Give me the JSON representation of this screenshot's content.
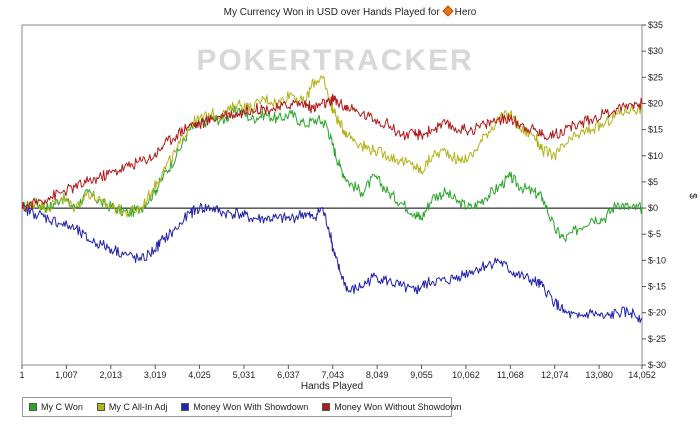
{
  "chart_data": {
    "type": "line",
    "title": "My Currency Won in USD over Hands Played for",
    "title_player": "Hero",
    "watermark": "POKERTRACKER",
    "xlabel": "Hands Played",
    "ylabel": "$",
    "xlim": [
      1,
      14052
    ],
    "ylim": [
      -30,
      35
    ],
    "x_ticks": [
      1,
      1007,
      2013,
      3019,
      4025,
      5031,
      6037,
      7043,
      8049,
      9055,
      10062,
      11068,
      12074,
      13080,
      14052
    ],
    "x_tick_labels": [
      "1",
      "1,007",
      "2,013",
      "3,019",
      "4,025",
      "5,031",
      "6,037",
      "7,043",
      "8,049",
      "9,055",
      "10,062",
      "11,068",
      "12,074",
      "13,080",
      "14,052"
    ],
    "y_ticks": [
      35,
      30,
      25,
      20,
      15,
      10,
      5,
      0,
      -5,
      -10,
      -15,
      -20,
      -25,
      -30
    ],
    "y_tick_labels": [
      "$35",
      "$30",
      "$25",
      "$20",
      "$15",
      "$10",
      "$5",
      "$0",
      "$-5",
      "$-10",
      "$-15",
      "$-20",
      "$-25",
      "$-30"
    ],
    "grid": false,
    "legend_position": "bottom-left",
    "series": [
      {
        "name": "My C Won",
        "color": "#2aa52a",
        "x": [
          1,
          300,
          600,
          900,
          1200,
          1500,
          1800,
          2100,
          2400,
          2700,
          3000,
          3200,
          3500,
          3800,
          4025,
          4300,
          4600,
          4900,
          5200,
          5500,
          5800,
          6100,
          6400,
          6700,
          6900,
          7043,
          7200,
          7400,
          7700,
          8000,
          8300,
          8600,
          8900,
          9055,
          9300,
          9600,
          9900,
          10200,
          10500,
          10800,
          11068,
          11300,
          11600,
          11800,
          12074,
          12300,
          12600,
          12900,
          13200,
          13500,
          13800,
          14052
        ],
        "y": [
          0,
          1,
          0,
          2,
          0,
          3,
          1,
          0,
          -1,
          0,
          3,
          6,
          10,
          15,
          16,
          17,
          17,
          19,
          17,
          18,
          17,
          18,
          16,
          17,
          16,
          12,
          8,
          5,
          3,
          6,
          3,
          1,
          -1,
          -2,
          2,
          3,
          1,
          0,
          2,
          4,
          6,
          4,
          3,
          2,
          -4,
          -6,
          -4,
          -2,
          -2,
          1,
          0,
          0
        ]
      },
      {
        "name": "My C All-In Adj",
        "color": "#b2b21a",
        "x": [
          1,
          300,
          600,
          900,
          1200,
          1500,
          1800,
          2100,
          2400,
          2700,
          3000,
          3200,
          3500,
          3800,
          4025,
          4300,
          4600,
          4900,
          5200,
          5500,
          5800,
          6100,
          6400,
          6600,
          6800,
          7000,
          7043,
          7200,
          7400,
          7700,
          8000,
          8300,
          8600,
          8900,
          9055,
          9300,
          9600,
          9900,
          10200,
          10500,
          10800,
          11068,
          11300,
          11600,
          11800,
          12074,
          12300,
          12600,
          12900,
          13200,
          13500,
          13800,
          14052
        ],
        "y": [
          0,
          1,
          0,
          2,
          0,
          3,
          1,
          0,
          -1,
          0,
          4,
          7,
          11,
          16,
          17,
          18,
          18,
          20,
          19,
          21,
          20,
          22,
          20,
          24,
          25,
          20,
          19,
          16,
          14,
          12,
          11,
          10,
          9,
          8,
          7,
          10,
          11,
          9,
          10,
          14,
          17,
          18,
          15,
          14,
          11,
          10,
          12,
          14,
          15,
          16,
          18,
          19,
          19
        ]
      },
      {
        "name": "Money Won With Showdown",
        "color": "#2222aa",
        "x": [
          1,
          300,
          600,
          900,
          1200,
          1500,
          1800,
          2100,
          2400,
          2700,
          3000,
          3200,
          3500,
          3800,
          4025,
          4300,
          4600,
          4900,
          5200,
          5500,
          5800,
          6100,
          6400,
          6600,
          6800,
          7000,
          7043,
          7200,
          7400,
          7700,
          8000,
          8300,
          8600,
          8900,
          9055,
          9300,
          9600,
          9900,
          10200,
          10500,
          10800,
          11068,
          11300,
          11600,
          11800,
          12074,
          12300,
          12600,
          12900,
          13200,
          13500,
          13800,
          14052
        ],
        "y": [
          0,
          -1,
          -2,
          -3,
          -4,
          -6,
          -7,
          -8,
          -9,
          -10,
          -8,
          -6,
          -4,
          -1,
          0,
          0,
          -1,
          -1,
          -2,
          -2,
          -2,
          -2,
          -1,
          -2,
          0,
          -5,
          -8,
          -12,
          -16,
          -15,
          -13,
          -14,
          -15,
          -16,
          -15,
          -14,
          -14,
          -13,
          -12,
          -11,
          -10,
          -12,
          -13,
          -14,
          -15,
          -18,
          -20,
          -21,
          -20,
          -21,
          -20,
          -20,
          -21
        ]
      },
      {
        "name": "Money Won Without Showdown",
        "color": "#b01a1a",
        "x": [
          1,
          300,
          600,
          900,
          1200,
          1500,
          1800,
          2100,
          2400,
          2700,
          3000,
          3200,
          3500,
          3800,
          4025,
          4300,
          4600,
          4900,
          5200,
          5500,
          5800,
          6100,
          6400,
          6600,
          6800,
          7000,
          7043,
          7200,
          7400,
          7700,
          8000,
          8300,
          8600,
          8900,
          9055,
          9300,
          9600,
          9900,
          10200,
          10500,
          10800,
          11068,
          11300,
          11600,
          11800,
          12074,
          12300,
          12600,
          12900,
          13200,
          13500,
          13800,
          14052
        ],
        "y": [
          0,
          1,
          2,
          3,
          4,
          5,
          6,
          7,
          8,
          9,
          10,
          12,
          14,
          16,
          16,
          17,
          18,
          18,
          19,
          19,
          19,
          20,
          20,
          19,
          20,
          20,
          21,
          20,
          19,
          18,
          17,
          16,
          14,
          14,
          14,
          15,
          16,
          15,
          15,
          16,
          17,
          17,
          16,
          15,
          14,
          14,
          15,
          16,
          17,
          18,
          19,
          20,
          20
        ]
      }
    ]
  }
}
